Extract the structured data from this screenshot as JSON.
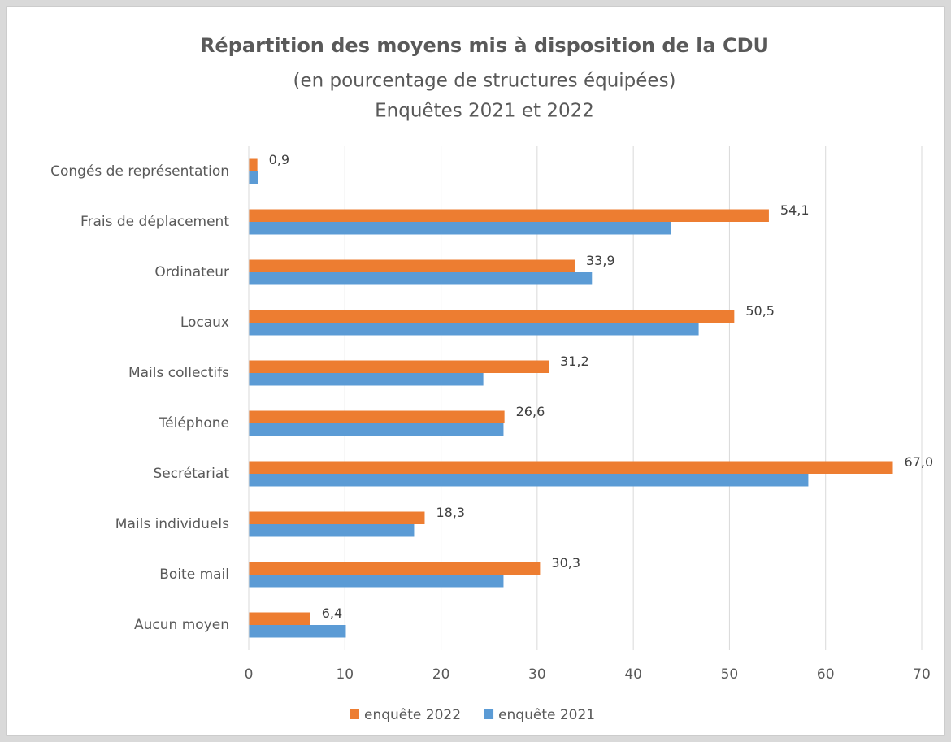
{
  "chart_data": {
    "type": "hbar",
    "title": "Répartition des moyens mis à disposition de la CDU",
    "subtitle": [
      "(en pourcentage de structures équipées)",
      "Enquêtes 2021 et 2022"
    ],
    "categories": [
      "Congés de représentation",
      "Frais de déplacement",
      "Ordinateur",
      "Locaux",
      "Mails collectifs",
      "Téléphone",
      "Secrétariat",
      "Mails individuels",
      "Boite mail",
      "Aucun moyen"
    ],
    "series": [
      {
        "name": "enquête 2022",
        "color": "#ed7d31",
        "values": [
          0.9,
          54.1,
          33.9,
          50.5,
          31.2,
          26.6,
          67.0,
          18.3,
          30.3,
          6.4
        ],
        "value_labels": [
          "0,9",
          "54,1",
          "33,9",
          "50,5",
          "31,2",
          "26,6",
          "67,0",
          "18,3",
          "30,3",
          "6,4"
        ]
      },
      {
        "name": "enquête 2021",
        "color": "#5b9bd5",
        "values": [
          1.0,
          43.9,
          35.7,
          46.8,
          24.4,
          26.5,
          58.2,
          17.2,
          26.5,
          10.1
        ]
      }
    ],
    "xlim": [
      0,
      70
    ],
    "xticks": [
      0,
      10,
      20,
      30,
      40,
      50,
      60,
      70
    ],
    "grid": true,
    "legend": "bottom"
  }
}
